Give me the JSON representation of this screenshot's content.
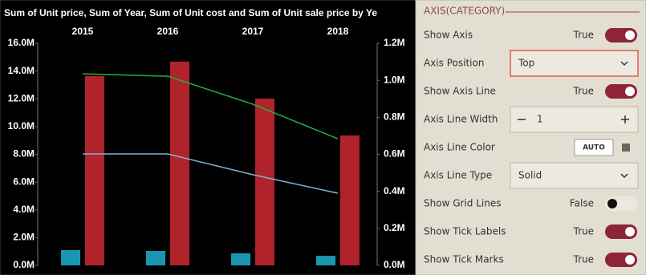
{
  "chart_data": {
    "type": "combo",
    "title": "Sum of Unit price, Sum of Year, Sum of Unit cost and Sum of Unit sale price by Ye",
    "categories": [
      "2015",
      "2016",
      "2017",
      "2018"
    ],
    "x_axis_position": "top",
    "grid": false,
    "series": [
      {
        "type": "bar",
        "color": "#1a97b0",
        "values": [
          1100000,
          1040000,
          870000,
          690000
        ]
      },
      {
        "type": "bar",
        "color": "#b0232a",
        "values": [
          13640000,
          14680000,
          12020000,
          9360000
        ]
      },
      {
        "type": "line",
        "axis": "y2",
        "color": "#22b04a",
        "values": [
          1035000,
          1022000,
          871000,
          684000
        ]
      },
      {
        "type": "line",
        "axis": "y2",
        "color": "#7eb3d6",
        "values": [
          602000,
          602000,
          490000,
          390000
        ]
      }
    ],
    "ylim": [
      0,
      16000000
    ],
    "yticks": [
      {
        "value": 0,
        "label": "0.0M"
      },
      {
        "value": 2000000,
        "label": "2.0M"
      },
      {
        "value": 4000000,
        "label": "4.0M"
      },
      {
        "value": 6000000,
        "label": "6.0M"
      },
      {
        "value": 8000000,
        "label": "8.0M"
      },
      {
        "value": 10000000,
        "label": "10.0M"
      },
      {
        "value": 12000000,
        "label": "12.0M"
      },
      {
        "value": 14000000,
        "label": "14.0M"
      },
      {
        "value": 16000000,
        "label": "16.0M"
      }
    ],
    "y2lim": [
      0,
      1200000
    ],
    "y2ticks": [
      {
        "value": 0,
        "label": "0.0M"
      },
      {
        "value": 200000,
        "label": "0.2M"
      },
      {
        "value": 400000,
        "label": "0.4M"
      },
      {
        "value": 600000,
        "label": "0.6M"
      },
      {
        "value": 800000,
        "label": "0.8M"
      },
      {
        "value": 1000000,
        "label": "1.0M"
      },
      {
        "value": 1200000,
        "label": "1.2M"
      }
    ]
  },
  "panel": {
    "header": "AXIS(CATEGORY)",
    "rows": [
      {
        "label": "Show Axis",
        "value": "True"
      },
      {
        "label": "Axis Position",
        "value": "Top"
      },
      {
        "label": "Show Axis Line",
        "value": "True"
      },
      {
        "label": "Axis Line Width",
        "value": "1"
      },
      {
        "label": "Axis Line Color",
        "value": "AUTO"
      },
      {
        "label": "Axis Line Type",
        "value": "Solid"
      },
      {
        "label": "Show Grid Lines",
        "value": "False"
      },
      {
        "label": "Show Tick Labels",
        "value": "True"
      },
      {
        "label": "Show Tick Marks",
        "value": "True"
      }
    ]
  }
}
